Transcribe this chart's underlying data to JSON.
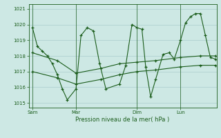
{
  "background_color": "#cde8e4",
  "grid_color": "#aacccc",
  "line_color": "#1a5c1a",
  "ylim": [
    1014.7,
    1021.3
  ],
  "yticks": [
    1015,
    1016,
    1017,
    1018,
    1019,
    1020,
    1021
  ],
  "xlabel": "Pression niveau de la mer( hPa )",
  "xtick_labels": [
    "Sam",
    "Mar",
    "Dim",
    "Lun"
  ],
  "xtick_pos": [
    0,
    35,
    84,
    119
  ],
  "xlim": [
    -3,
    148
  ],
  "line1_x": [
    0,
    4,
    8,
    12,
    16,
    20,
    24,
    28,
    35,
    39,
    44,
    49,
    54,
    59,
    70,
    75,
    80,
    84,
    88,
    91,
    95,
    99,
    105,
    110,
    114,
    119,
    123,
    127,
    131,
    135,
    139,
    143,
    147
  ],
  "line1_y": [
    1019.8,
    1018.6,
    1018.3,
    1018.0,
    1017.5,
    1016.8,
    1015.9,
    1015.2,
    1015.9,
    1019.3,
    1019.8,
    1019.6,
    1017.5,
    1015.9,
    1016.2,
    1017.4,
    1020.0,
    1019.8,
    1019.7,
    1017.3,
    1015.4,
    1016.5,
    1018.1,
    1018.2,
    1017.8,
    1019.0,
    1020.1,
    1020.5,
    1020.7,
    1020.7,
    1019.3,
    1017.9,
    1017.8
  ],
  "line2_x": [
    0,
    20,
    35,
    55,
    70,
    84,
    99,
    119,
    135,
    147
  ],
  "line2_y": [
    1018.2,
    1017.7,
    1016.9,
    1017.2,
    1017.5,
    1017.6,
    1017.7,
    1017.9,
    1018.0,
    1018.0
  ],
  "line3_x": [
    0,
    20,
    35,
    55,
    70,
    84,
    99,
    119,
    135,
    147
  ],
  "line3_y": [
    1017.0,
    1016.6,
    1016.2,
    1016.5,
    1016.8,
    1017.0,
    1017.1,
    1017.3,
    1017.4,
    1017.4
  ],
  "vline_positions": [
    0,
    35,
    84,
    119
  ],
  "title_fontsize": 6,
  "tick_fontsize": 5,
  "xlabel_fontsize": 6
}
